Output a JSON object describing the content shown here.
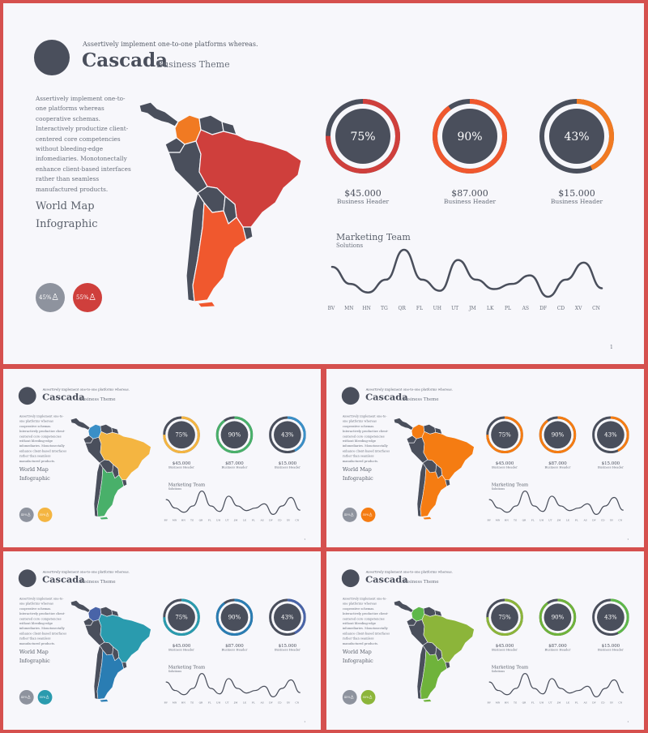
{
  "tagline": "Assertively implement one-to-one platforms whereas.",
  "title": "Cascada",
  "subtitle": "Business Theme",
  "paragraph": "Assertively implement one-to-one platforms whereas cooperative schemas. Interactively productize client-centered core competencies without bleeding-edge infomediaries. Monotonectally enhance client-based interfaces rather than seamless manufactured products.",
  "world_map_line1": "World Map",
  "world_map_line2": "Infographic",
  "gender_stats": [
    {
      "value": "45%",
      "icon": "person-icon"
    },
    {
      "value": "55%",
      "icon": "person-icon"
    }
  ],
  "rings": [
    {
      "value": "75%",
      "fraction": 0.75,
      "amount": "$45.000",
      "label": "Business Header"
    },
    {
      "value": "90%",
      "fraction": 0.9,
      "amount": "$87.000",
      "label": "Business Header"
    },
    {
      "value": "43%",
      "fraction": 0.43,
      "amount": "$15.000",
      "label": "Business Header"
    }
  ],
  "marketing": {
    "title": "Marketing Team",
    "subtitle": "Solutions",
    "x_labels": [
      "BV",
      "MN",
      "HN",
      "TG",
      "QR",
      "FL",
      "UH",
      "UT",
      "JM",
      "LK",
      "PL",
      "AS",
      "DF",
      "CD",
      "XV",
      "CN"
    ],
    "values": [
      4,
      2,
      1,
      2.5,
      6,
      2.5,
      1.2,
      4.8,
      2.5,
      1.4,
      2,
      3,
      0.5,
      2.5,
      4.5,
      1.5
    ]
  },
  "page_number": "1",
  "themes": [
    {
      "name": "red",
      "accent": "#cf3f3c",
      "secondary": "#f0582e",
      "tertiary": "#f17a22"
    },
    {
      "name": "yellow",
      "accent": "#f4b541",
      "secondary": "#49b06a",
      "tertiary": "#3a8fc7"
    },
    {
      "name": "orange",
      "accent": "#f57c12",
      "secondary": "#f57c12",
      "tertiary": "#f57c12"
    },
    {
      "name": "blue",
      "accent": "#2a9bae",
      "secondary": "#2a7db3",
      "tertiary": "#4964a8"
    },
    {
      "name": "green",
      "accent": "#8cb53a",
      "secondary": "#6fb33b",
      "tertiary": "#5eb84a"
    }
  ]
}
